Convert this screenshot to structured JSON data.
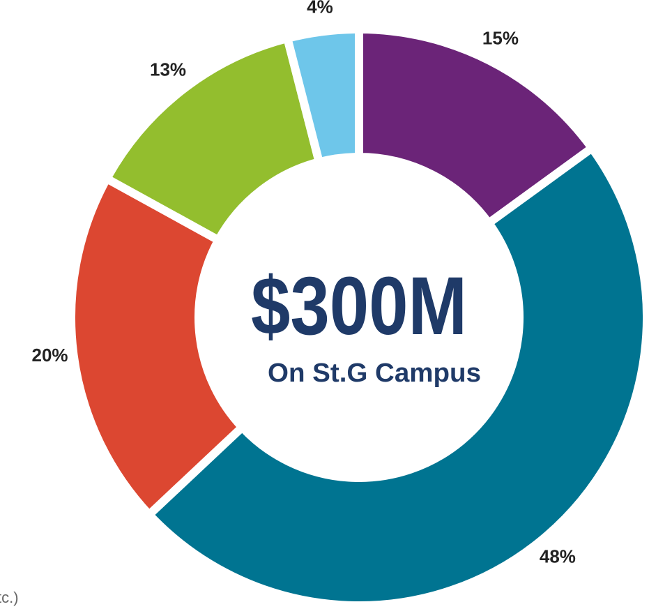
{
  "chart_data": {
    "type": "donut",
    "center_title": "$300M",
    "center_subtitle": "On St.G Campus",
    "annotation": "tc.)",
    "categories": [
      null,
      null,
      null,
      null,
      null
    ],
    "values": [
      15,
      48,
      20,
      13,
      4
    ],
    "value_labels": [
      "15%",
      "48%",
      "20%",
      "13%",
      "4%"
    ],
    "colors": [
      "#6b2478",
      "#007491",
      "#dc4731",
      "#93be2e",
      "#6ec6ea"
    ]
  }
}
